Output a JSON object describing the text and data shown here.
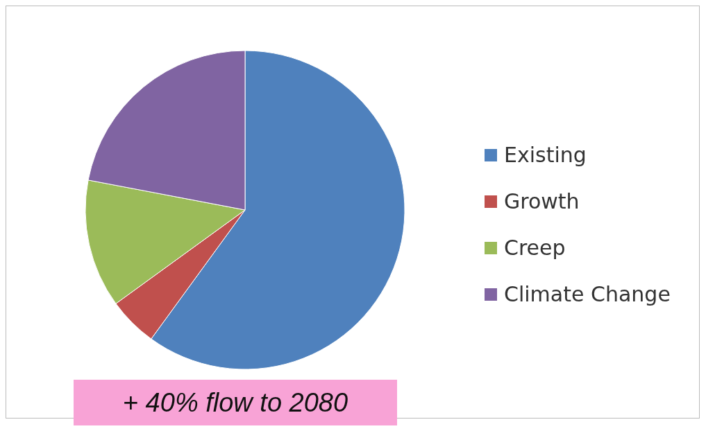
{
  "chart_data": {
    "type": "pie",
    "categories": [
      "Existing",
      "Growth",
      "Creep",
      "Climate Change"
    ],
    "values": [
      60,
      5,
      13,
      22
    ],
    "colors": [
      "#4f81bd",
      "#c0504d",
      "#9bbb59",
      "#8064a2"
    ],
    "legend": "right",
    "annotations": [
      "+ 40% flow to 2080"
    ]
  }
}
